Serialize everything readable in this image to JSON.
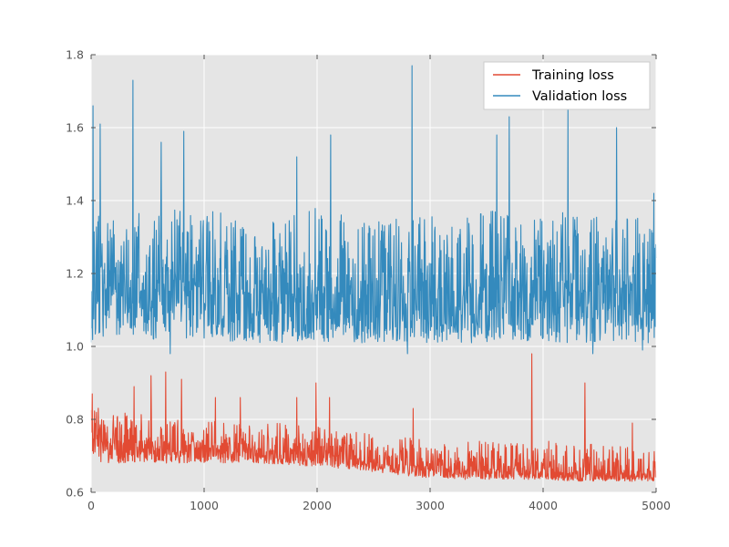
{
  "chart_data": {
    "type": "line",
    "title": "",
    "xlabel": "",
    "ylabel": "",
    "xlim": [
      0,
      5000
    ],
    "ylim": [
      0.6,
      1.8
    ],
    "x_ticks": [
      0,
      1000,
      2000,
      3000,
      4000,
      5000
    ],
    "x_tick_labels": [
      "0",
      "1000",
      "2000",
      "3000",
      "4000",
      "5000"
    ],
    "y_ticks": [
      0.6,
      0.8,
      1.0,
      1.2,
      1.4,
      1.6,
      1.8
    ],
    "y_tick_labels": [
      "0.6",
      "0.8",
      "1.0",
      "1.2",
      "1.4",
      "1.6",
      "1.8"
    ],
    "grid": true,
    "legend_position": "top-right",
    "colors": {
      "background": "#e5e5e5",
      "grid": "#ffffff",
      "training": "#e24a33",
      "validation": "#348abd"
    },
    "series": [
      {
        "name": "Training loss",
        "color": "#e24a33",
        "x": [
          0,
          250,
          500,
          750,
          1000,
          1250,
          1500,
          1750,
          2000,
          2250,
          2500,
          2750,
          3000,
          3250,
          3500,
          3750,
          4000,
          4250,
          4500,
          4750,
          5000
        ],
        "values": [
          0.74,
          0.73,
          0.72,
          0.72,
          0.72,
          0.71,
          0.71,
          0.7,
          0.7,
          0.69,
          0.68,
          0.67,
          0.67,
          0.66,
          0.66,
          0.66,
          0.66,
          0.65,
          0.65,
          0.65,
          0.65
        ],
        "band_low": [
          0.68,
          0.68,
          0.68,
          0.68,
          0.68,
          0.68,
          0.68,
          0.675,
          0.67,
          0.665,
          0.655,
          0.645,
          0.64,
          0.635,
          0.635,
          0.635,
          0.635,
          0.63,
          0.63,
          0.63,
          0.63
        ],
        "band_high": [
          0.84,
          0.82,
          0.82,
          0.8,
          0.8,
          0.79,
          0.79,
          0.79,
          0.78,
          0.77,
          0.76,
          0.75,
          0.75,
          0.74,
          0.74,
          0.74,
          0.74,
          0.74,
          0.73,
          0.73,
          0.73
        ],
        "peaks": [
          {
            "x": 10,
            "y": 0.87
          },
          {
            "x": 380,
            "y": 0.89
          },
          {
            "x": 530,
            "y": 0.92
          },
          {
            "x": 660,
            "y": 0.93
          },
          {
            "x": 800,
            "y": 0.91
          },
          {
            "x": 1100,
            "y": 0.86
          },
          {
            "x": 1320,
            "y": 0.86
          },
          {
            "x": 1820,
            "y": 0.86
          },
          {
            "x": 1990,
            "y": 0.9
          },
          {
            "x": 2110,
            "y": 0.86
          },
          {
            "x": 2850,
            "y": 0.83
          },
          {
            "x": 3900,
            "y": 0.98
          },
          {
            "x": 4370,
            "y": 0.9
          },
          {
            "x": 4790,
            "y": 0.79
          }
        ]
      },
      {
        "name": "Validation loss",
        "color": "#348abd",
        "x": [
          0,
          250,
          500,
          750,
          1000,
          1250,
          1500,
          1750,
          2000,
          2250,
          2500,
          2750,
          3000,
          3250,
          3500,
          3750,
          4000,
          4250,
          4500,
          4750,
          5000
        ],
        "values": [
          1.15,
          1.16,
          1.15,
          1.15,
          1.15,
          1.14,
          1.14,
          1.14,
          1.14,
          1.14,
          1.14,
          1.14,
          1.14,
          1.14,
          1.15,
          1.15,
          1.14,
          1.15,
          1.14,
          1.15,
          1.15
        ],
        "band_low": [
          1.0,
          1.02,
          1.02,
          1.02,
          1.02,
          1.01,
          1.01,
          1.01,
          1.01,
          1.01,
          1.01,
          1.01,
          1.01,
          1.01,
          1.01,
          1.01,
          1.01,
          1.01,
          1.01,
          1.01,
          1.01
        ],
        "band_high": [
          1.35,
          1.38,
          1.4,
          1.38,
          1.38,
          1.36,
          1.36,
          1.36,
          1.38,
          1.37,
          1.36,
          1.36,
          1.36,
          1.36,
          1.38,
          1.38,
          1.36,
          1.38,
          1.36,
          1.38,
          1.36
        ],
        "peaks": [
          {
            "x": 15,
            "y": 1.66
          },
          {
            "x": 80,
            "y": 1.61
          },
          {
            "x": 370,
            "y": 1.73
          },
          {
            "x": 620,
            "y": 1.56
          },
          {
            "x": 820,
            "y": 1.59
          },
          {
            "x": 1820,
            "y": 1.52
          },
          {
            "x": 2120,
            "y": 1.58
          },
          {
            "x": 2840,
            "y": 1.77
          },
          {
            "x": 3590,
            "y": 1.58
          },
          {
            "x": 3700,
            "y": 1.63
          },
          {
            "x": 4220,
            "y": 1.65
          },
          {
            "x": 4440,
            "y": 1.55
          },
          {
            "x": 4650,
            "y": 1.6
          },
          {
            "x": 4980,
            "y": 1.42
          }
        ],
        "troughs": [
          {
            "x": 700,
            "y": 0.98
          },
          {
            "x": 2800,
            "y": 0.98
          },
          {
            "x": 4440,
            "y": 0.98
          },
          {
            "x": 4880,
            "y": 0.99
          }
        ]
      }
    ]
  }
}
